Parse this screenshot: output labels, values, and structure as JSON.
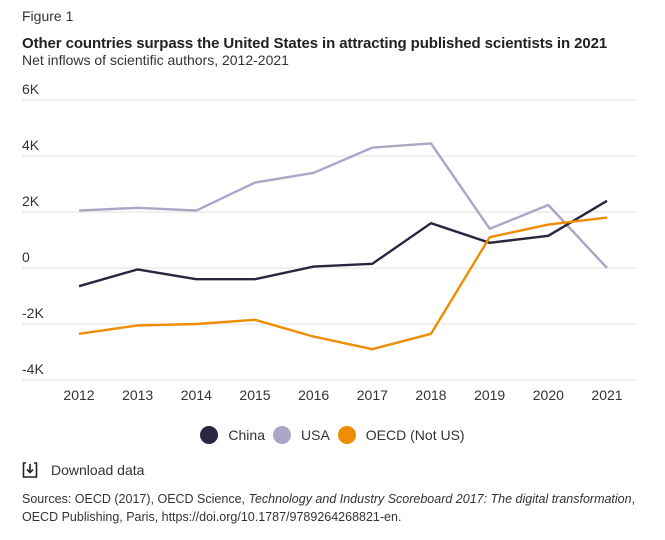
{
  "figure_label": "Figure 1",
  "title": "Other countries surpass the United States in attracting published scientists in 2021",
  "subtitle": "Net inflows of scientific authors, 2012-2021",
  "download_label": "Download data",
  "sources": {
    "prefix": "Sources: OECD (2017), OECD Science, ",
    "italic": "Technology and Industry Scoreboard 2017: The digital transformation",
    "suffix": ", OECD Publishing, Paris, https://doi.org/10.1787/9789264268821-en."
  },
  "chart_data": {
    "type": "line",
    "title": "Other countries surpass the United States in attracting published scientists in 2021",
    "subtitle": "Net inflows of scientific authors, 2012-2021",
    "xlabel": "",
    "ylabel": "",
    "x": [
      2012,
      2013,
      2014,
      2015,
      2016,
      2017,
      2018,
      2019,
      2020,
      2021
    ],
    "x_tick_labels": [
      "2012",
      "2013",
      "2014",
      "2015",
      "2016",
      "2017",
      "2018",
      "2019",
      "2020",
      "2021"
    ],
    "ylim": [
      -4000,
      6000
    ],
    "y_ticks": [
      -4000,
      -2000,
      0,
      2000,
      4000,
      6000
    ],
    "y_tick_labels": [
      "-4K",
      "-2K",
      "0",
      "2K",
      "4K",
      "6K"
    ],
    "grid": "horizontal",
    "legend_position": "bottom-center",
    "series": [
      {
        "name": "China",
        "color": "#2a2640",
        "values": [
          -650,
          -50,
          -400,
          -400,
          50,
          150,
          1600,
          900,
          1150,
          2400
        ]
      },
      {
        "name": "USA",
        "color": "#aba6c4",
        "values": [
          2050,
          2150,
          2050,
          3050,
          3400,
          4300,
          4450,
          1400,
          2250,
          0
        ]
      },
      {
        "name": "OECD (Not US)",
        "color": "#ef8d00",
        "values": [
          -2350,
          -2050,
          -2000,
          -1850,
          -2450,
          -2900,
          -2350,
          1100,
          1550,
          1800
        ]
      }
    ]
  }
}
